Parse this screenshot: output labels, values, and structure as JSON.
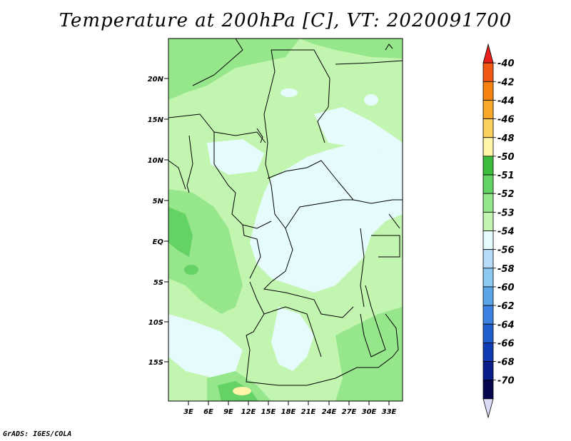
{
  "title": "Temperature at 200hPa [C], VT: 2020091700",
  "credit": "GrADS: IGES/COLA",
  "lat_labels": [
    "20N",
    "15N",
    "10N",
    "5N",
    "EQ",
    "5S",
    "10S",
    "15S"
  ],
  "lon_labels": [
    "3E",
    "6E",
    "9E",
    "12E",
    "15E",
    "18E",
    "21E",
    "24E",
    "27E",
    "30E",
    "33E"
  ],
  "colorbar": {
    "labels": [
      "-40",
      "-42",
      "-44",
      "-46",
      "-48",
      "-50",
      "-51",
      "-52",
      "-53",
      "-54",
      "-56",
      "-58",
      "-60",
      "-62",
      "-64",
      "-66",
      "-68",
      "-70"
    ],
    "colors": [
      "#e8201c",
      "#f05a14",
      "#f5820e",
      "#f7a82a",
      "#fad060",
      "#fff5a6",
      "#3cbe3c",
      "#64d264",
      "#96e68c",
      "#c2f5b0",
      "#e6fcfc",
      "#b4dcf8",
      "#8cc8f0",
      "#5aa5e6",
      "#3c82e0",
      "#1e5fcd",
      "#0f3cb4",
      "#0a1e8c",
      "#06064e",
      "#dadaf5"
    ]
  },
  "palette": {
    "land_base": "#c2f5b0",
    "cold_region": "#e6fcfc",
    "warm_region": "#96e68c",
    "warmest_region": "#64d264",
    "hot_spot": "#fff5a6",
    "border": "#000000"
  }
}
